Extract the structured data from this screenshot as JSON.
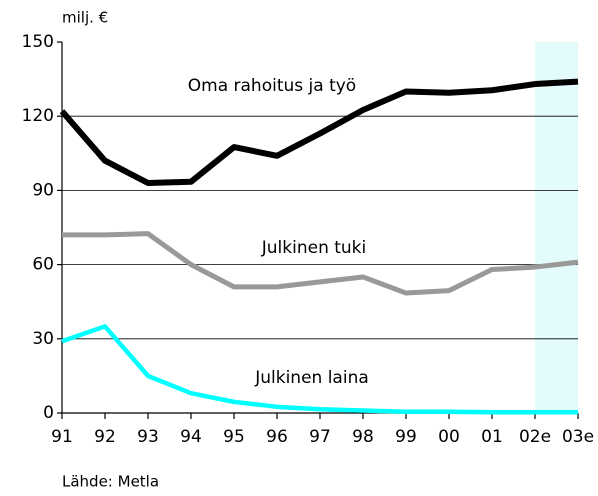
{
  "chart_data": {
    "type": "line",
    "y_unit_label": "milj. €",
    "source": "Lähde: Metla",
    "categories": [
      "91",
      "92",
      "93",
      "94",
      "95",
      "96",
      "97",
      "98",
      "99",
      "00",
      "01",
      "02e",
      "03e"
    ],
    "series": [
      {
        "name": "Oma rahoitus ja työ",
        "color": "#000000",
        "values": [
          122,
          102,
          93,
          93.5,
          107.5,
          104,
          113,
          122.5,
          130,
          129.5,
          130.5,
          133,
          134
        ]
      },
      {
        "name": "Julkinen tuki",
        "color": "#999999",
        "values": [
          72,
          72,
          72.5,
          60,
          51,
          51,
          53,
          55,
          48.5,
          49.5,
          58,
          59,
          61
        ]
      },
      {
        "name": "Julkinen laina",
        "color": "#00ffff",
        "values": [
          29,
          35,
          15,
          8,
          4.5,
          2.5,
          1.5,
          1,
          0.5,
          0.5,
          0.3,
          0.3,
          0.3
        ]
      }
    ],
    "ylim": [
      0,
      150
    ],
    "yticks": [
      0,
      30,
      60,
      90,
      120,
      150
    ],
    "grid": true,
    "shaded_range": {
      "start_index": 11,
      "end_index": 12,
      "color": "#e3fbfb"
    }
  }
}
